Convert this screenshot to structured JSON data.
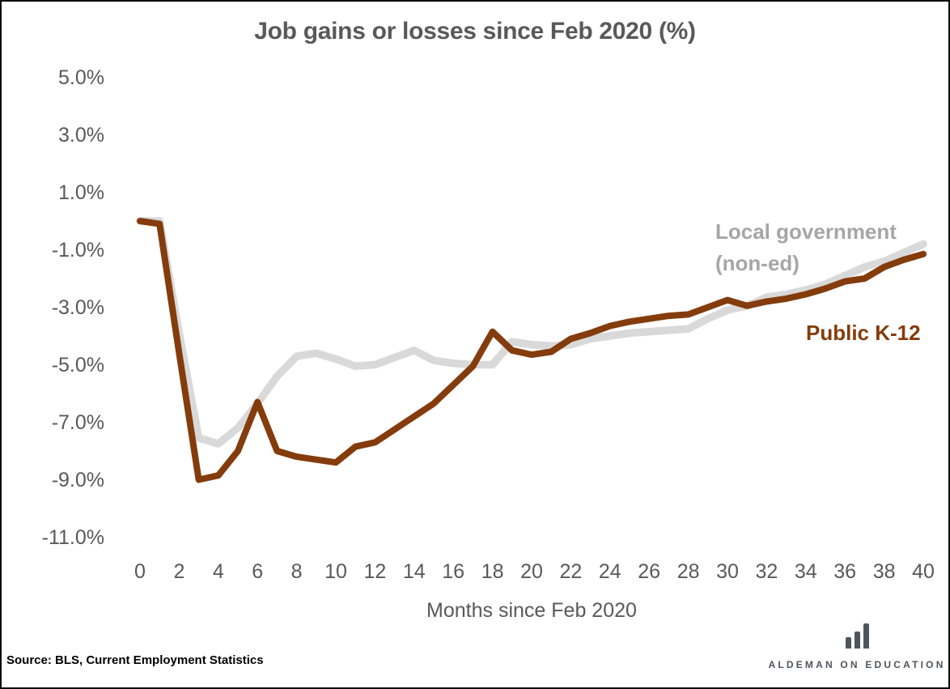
{
  "chart_data": {
    "type": "line",
    "title": "Job gains or losses since Feb 2020 (%)",
    "xlabel": "Months since Feb 2020",
    "ylabel": "",
    "grid": false,
    "legend_position": "inline-end-of-line-labels",
    "ylim": [
      -11.0,
      5.0
    ],
    "x_ticks": [
      0,
      2,
      4,
      6,
      8,
      10,
      12,
      14,
      16,
      18,
      20,
      22,
      24,
      26,
      28,
      30,
      32,
      34,
      36,
      38,
      40
    ],
    "y_ticks": [
      {
        "label": "5.0%",
        "value": 5.0
      },
      {
        "label": "3.0%",
        "value": 3.0
      },
      {
        "label": "1.0%",
        "value": 1.0
      },
      {
        "label": "-1.0%",
        "value": -1.0
      },
      {
        "label": "-3.0%",
        "value": -3.0
      },
      {
        "label": "-5.0%",
        "value": -5.0
      },
      {
        "label": "-7.0%",
        "value": -7.0
      },
      {
        "label": "-9.0%",
        "value": -9.0
      },
      {
        "label": "-11.0%",
        "value": -11.0
      }
    ],
    "x": [
      0,
      1,
      2,
      3,
      4,
      5,
      6,
      7,
      8,
      9,
      10,
      11,
      12,
      13,
      14,
      15,
      16,
      17,
      18,
      19,
      20,
      21,
      22,
      23,
      24,
      25,
      26,
      27,
      28,
      29,
      30,
      31,
      32,
      33,
      34,
      35,
      36,
      37,
      38,
      39,
      40
    ],
    "series": [
      {
        "name": "Local government (non-ed)",
        "label_line1": "Local government",
        "label_line2": "(non-ed)",
        "color": "#d9d9d9",
        "label_color": "#a6a6a6",
        "values": [
          0.0,
          0.0,
          -3.9,
          -7.55,
          -7.75,
          -7.2,
          -6.35,
          -5.4,
          -4.7,
          -4.6,
          -4.8,
          -5.05,
          -5.0,
          -4.75,
          -4.5,
          -4.85,
          -4.95,
          -5.0,
          -5.0,
          -4.2,
          -4.3,
          -4.35,
          -4.3,
          -4.1,
          -4.0,
          -3.9,
          -3.85,
          -3.8,
          -3.75,
          -3.4,
          -3.1,
          -2.95,
          -2.65,
          -2.55,
          -2.4,
          -2.2,
          -1.9,
          -1.6,
          -1.4,
          -1.1,
          -0.8
        ]
      },
      {
        "name": "Public K-12",
        "label": "Public K-12",
        "color": "#843c0c",
        "label_color": "#843c0c",
        "values": [
          0.0,
          -0.1,
          -4.6,
          -9.0,
          -8.85,
          -8.0,
          -6.3,
          -8.0,
          -8.2,
          -8.3,
          -8.4,
          -7.85,
          -7.7,
          -7.25,
          -6.8,
          -6.35,
          -5.7,
          -5.05,
          -3.85,
          -4.5,
          -4.65,
          -4.55,
          -4.1,
          -3.9,
          -3.65,
          -3.5,
          -3.4,
          -3.3,
          -3.25,
          -3.0,
          -2.75,
          -2.95,
          -2.8,
          -2.7,
          -2.55,
          -2.35,
          -2.1,
          -2.0,
          -1.6,
          -1.35,
          -1.15
        ]
      }
    ]
  },
  "source_note": "Source: BLS, Current Employment Statistics",
  "branding": {
    "logo_text": "ALDEMAN ON EDUCATION",
    "logo_icon": "bar-chart-icon",
    "logo_color": "#4d565e"
  }
}
